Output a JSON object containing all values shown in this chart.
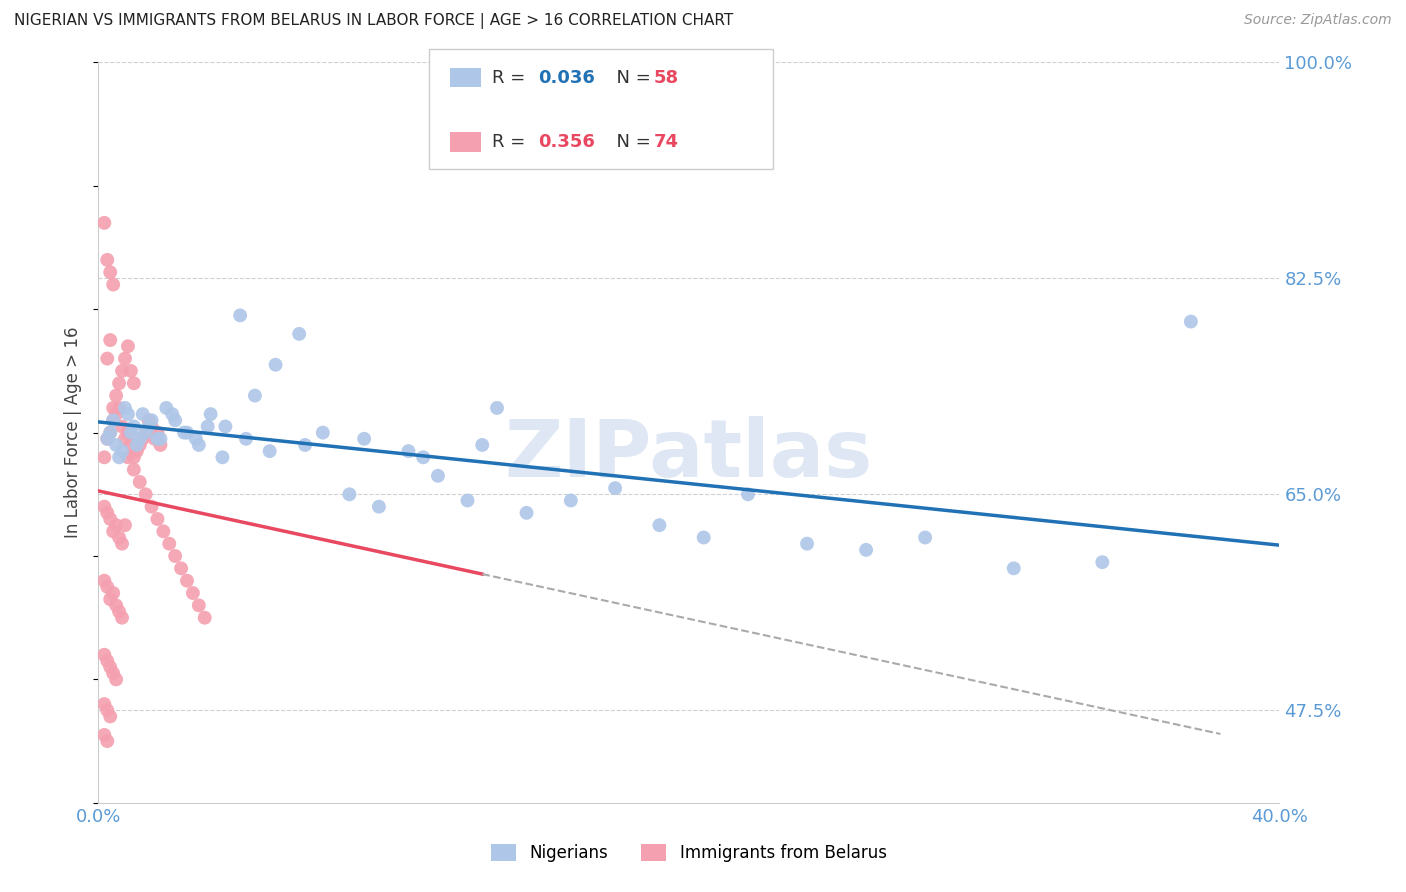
{
  "title": "NIGERIAN VS IMMIGRANTS FROM BELARUS IN LABOR FORCE | AGE > 16 CORRELATION CHART",
  "source": "Source: ZipAtlas.com",
  "ylabel": "In Labor Force | Age > 16",
  "xlim": [
    0.0,
    0.4
  ],
  "ylim": [
    0.4,
    1.0
  ],
  "yticks": [
    0.475,
    0.65,
    0.825,
    1.0
  ],
  "ytick_labels": [
    "47.5%",
    "65.0%",
    "82.5%",
    "100.0%"
  ],
  "axis_color": "#5B9BD5",
  "grid_color": "#D0D0D0",
  "background_color": "#FFFFFF",
  "nigerians": {
    "label": "Nigerians",
    "color": "#AEC6E8",
    "line_color": "#2171B5",
    "x": [
      0.003,
      0.005,
      0.007,
      0.009,
      0.011,
      0.013,
      0.015,
      0.017,
      0.02,
      0.023,
      0.026,
      0.03,
      0.034,
      0.038,
      0.043,
      0.048,
      0.053,
      0.06,
      0.068,
      0.076,
      0.085,
      0.095,
      0.105,
      0.115,
      0.125,
      0.135,
      0.145,
      0.16,
      0.175,
      0.19,
      0.205,
      0.22,
      0.24,
      0.26,
      0.28,
      0.31,
      0.34,
      0.37,
      0.004,
      0.006,
      0.008,
      0.01,
      0.012,
      0.014,
      0.016,
      0.018,
      0.021,
      0.025,
      0.029,
      0.033,
      0.037,
      0.042,
      0.05,
      0.058,
      0.07,
      0.09,
      0.11,
      0.13
    ],
    "y": [
      0.695,
      0.71,
      0.68,
      0.72,
      0.7,
      0.69,
      0.715,
      0.705,
      0.695,
      0.72,
      0.71,
      0.7,
      0.69,
      0.715,
      0.705,
      0.795,
      0.73,
      0.755,
      0.78,
      0.7,
      0.65,
      0.64,
      0.685,
      0.665,
      0.645,
      0.72,
      0.635,
      0.645,
      0.655,
      0.625,
      0.615,
      0.65,
      0.61,
      0.605,
      0.615,
      0.59,
      0.595,
      0.79,
      0.7,
      0.69,
      0.685,
      0.715,
      0.705,
      0.695,
      0.7,
      0.71,
      0.695,
      0.715,
      0.7,
      0.695,
      0.705,
      0.68,
      0.695,
      0.685,
      0.69,
      0.695,
      0.68,
      0.69
    ]
  },
  "belarus": {
    "label": "Immigrants from Belarus",
    "color": "#F4A0B0",
    "line_color": "#E84860",
    "x": [
      0.002,
      0.003,
      0.004,
      0.005,
      0.006,
      0.007,
      0.008,
      0.009,
      0.01,
      0.011,
      0.012,
      0.013,
      0.014,
      0.015,
      0.016,
      0.017,
      0.018,
      0.019,
      0.02,
      0.021,
      0.003,
      0.004,
      0.005,
      0.006,
      0.007,
      0.008,
      0.009,
      0.01,
      0.011,
      0.012,
      0.002,
      0.003,
      0.004,
      0.005,
      0.006,
      0.007,
      0.008,
      0.009,
      0.002,
      0.003,
      0.004,
      0.005,
      0.006,
      0.007,
      0.008,
      0.002,
      0.003,
      0.004,
      0.005,
      0.006,
      0.002,
      0.003,
      0.004,
      0.002,
      0.003,
      0.002,
      0.003,
      0.004,
      0.005,
      0.01,
      0.012,
      0.014,
      0.016,
      0.018,
      0.02,
      0.022,
      0.024,
      0.026,
      0.028,
      0.03,
      0.032,
      0.034,
      0.036
    ],
    "y": [
      0.68,
      0.695,
      0.7,
      0.71,
      0.715,
      0.72,
      0.705,
      0.695,
      0.7,
      0.69,
      0.68,
      0.685,
      0.69,
      0.695,
      0.7,
      0.71,
      0.705,
      0.695,
      0.7,
      0.69,
      0.76,
      0.775,
      0.72,
      0.73,
      0.74,
      0.75,
      0.76,
      0.77,
      0.75,
      0.74,
      0.64,
      0.635,
      0.63,
      0.62,
      0.625,
      0.615,
      0.61,
      0.625,
      0.58,
      0.575,
      0.565,
      0.57,
      0.56,
      0.555,
      0.55,
      0.52,
      0.515,
      0.51,
      0.505,
      0.5,
      0.48,
      0.475,
      0.47,
      0.455,
      0.45,
      0.87,
      0.84,
      0.83,
      0.82,
      0.68,
      0.67,
      0.66,
      0.65,
      0.64,
      0.63,
      0.62,
      0.61,
      0.6,
      0.59,
      0.58,
      0.57,
      0.56,
      0.55
    ]
  },
  "legend_nigerian_color": "#2171B5",
  "legend_belarus_color": "#E84860",
  "watermark": "ZIPatlas",
  "watermark_color": "#C8D8EC"
}
